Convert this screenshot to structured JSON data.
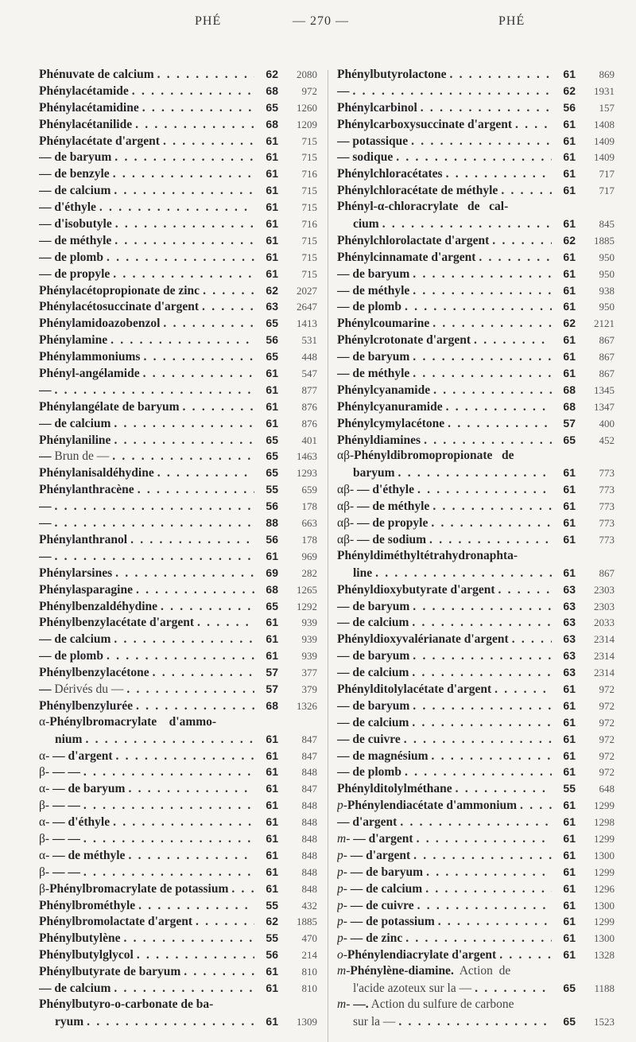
{
  "header": {
    "left": "PHÉ",
    "center": "— 270 —",
    "right": "PHÉ"
  },
  "columns": {
    "left": [
      {
        "t": "Phénuvate de calcium",
        "v": "62",
        "p": "2080"
      },
      {
        "t": "Phénylacétamide",
        "v": "68",
        "p": "972"
      },
      {
        "t": "Phénylacétamidine",
        "v": "65",
        "p": "1260"
      },
      {
        "t": "Phénylacétanilide",
        "v": "68",
        "p": "1209"
      },
      {
        "t": "Phénylacétate d'argent",
        "v": "61",
        "p": "715"
      },
      {
        "t": "— de baryum",
        "v": "61",
        "p": "715"
      },
      {
        "t": "— de benzyle",
        "v": "61",
        "p": "716"
      },
      {
        "t": "— de calcium",
        "v": "61",
        "p": "715"
      },
      {
        "t": "— d'éthyle",
        "v": "61",
        "p": "715"
      },
      {
        "t": "— d'isobutyle",
        "v": "61",
        "p": "716"
      },
      {
        "t": "— de méthyle",
        "v": "61",
        "p": "715"
      },
      {
        "t": "— de plomb",
        "v": "61",
        "p": "715"
      },
      {
        "t": "— de propyle",
        "v": "61",
        "p": "715"
      },
      {
        "t": "Phénylacétopropionate de zinc",
        "v": "62",
        "p": "2027"
      },
      {
        "t": "Phénylacétosuccinate d'argent",
        "v": "63",
        "p": "2647"
      },
      {
        "t": "Phénylamidoazobenzol",
        "v": "65",
        "p": "1413"
      },
      {
        "t": "Phénylamine",
        "v": "56",
        "p": "531"
      },
      {
        "t": "Phénylammoniums",
        "v": "65",
        "p": "448"
      },
      {
        "t": "Phényl-angélamide",
        "v": "61",
        "p": "547"
      },
      {
        "t": "—",
        "v": "61",
        "p": "877"
      },
      {
        "t": "Phénylangélate de baryum",
        "v": "61",
        "p": "876"
      },
      {
        "t": "— de calcium",
        "v": "61",
        "p": "876"
      },
      {
        "t": "Phénylaniline",
        "v": "65",
        "p": "401"
      },
      {
        "t": "—",
        "n": " Brun de —",
        "v": "65",
        "p": "1463"
      },
      {
        "t": "Phénylanisaldéhydine",
        "v": "65",
        "p": "1293"
      },
      {
        "t": "Phénylanthracène",
        "v": "55",
        "p": "659"
      },
      {
        "t": "—",
        "v": "56",
        "p": "178"
      },
      {
        "t": "—",
        "v": "88",
        "p": "663"
      },
      {
        "t": "Phénylanthranol",
        "v": "56",
        "p": "178"
      },
      {
        "t": "—",
        "v": "61",
        "p": "969"
      },
      {
        "t": "Phénylarsines",
        "v": "69",
        "p": "282"
      },
      {
        "t": "Phénylasparagine",
        "v": "68",
        "p": "1265"
      },
      {
        "t": "Phénylbenzaldéhydine",
        "v": "65",
        "p": "1292"
      },
      {
        "t": "Phénylbenzylacétate d'argent",
        "v": "61",
        "p": "939"
      },
      {
        "t": "— de calcium",
        "v": "61",
        "p": "939"
      },
      {
        "t": "— de plomb",
        "v": "61",
        "p": "939"
      },
      {
        "t": "Phénylbenzylacétone",
        "v": "57",
        "p": "377"
      },
      {
        "t": "—",
        "n": " Dérivés du —",
        "v": "57",
        "p": "379"
      },
      {
        "t": "Phénylbenzylurée",
        "v": "68",
        "p": "1326"
      },
      {
        "pre": "α-",
        "t": "Phénylbromacrylate    d'ammo-"
      },
      {
        "t": "nium",
        "v": "61",
        "p": "847",
        "cont": true
      },
      {
        "pre": "α-",
        "t": " — d'argent",
        "v": "61",
        "p": "847"
      },
      {
        "pre": "β-",
        "t": " — —",
        "v": "61",
        "p": "848"
      },
      {
        "pre": "α-",
        "t": " — de baryum",
        "v": "61",
        "p": "847"
      },
      {
        "pre": "β-",
        "t": " — —",
        "v": "61",
        "p": "848"
      },
      {
        "pre": "α-",
        "t": " — d'éthyle",
        "v": "61",
        "p": "848"
      },
      {
        "pre": "β-",
        "t": " — —",
        "v": "61",
        "p": "848"
      },
      {
        "pre": "α-",
        "t": " — de méthyle",
        "v": "61",
        "p": "848"
      },
      {
        "pre": "β-",
        "t": " — —",
        "v": "61",
        "p": "848"
      },
      {
        "pre": "β-",
        "t": "Phénylbromacrylate de potassium",
        "v": "61",
        "p": "848"
      },
      {
        "t": "Phénylbrométhyle",
        "v": "55",
        "p": "432"
      },
      {
        "t": "Phénylbromolactate d'argent",
        "v": "62",
        "p": "1885"
      },
      {
        "t": "Phénylbutylène",
        "v": "55",
        "p": "470"
      },
      {
        "t": "Phénylbutylglycol",
        "v": "56",
        "p": "214"
      },
      {
        "t": "Phénylbutyrate de baryum",
        "v": "61",
        "p": "810"
      },
      {
        "t": "— de calcium",
        "v": "61",
        "p": "810"
      },
      {
        "t": "Phénylbutyro-o-carbonate de ba-"
      },
      {
        "t": "ryum",
        "v": "61",
        "p": "1309",
        "cont": true
      }
    ],
    "right": [
      {
        "t": "Phénylbutyrolactone",
        "v": "61",
        "p": "869"
      },
      {
        "t": "—",
        "v": "62",
        "p": "1931"
      },
      {
        "t": "Phénylcarbinol",
        "v": "56",
        "p": "157"
      },
      {
        "t": "Phénylcarboxysuccinate d'argent",
        "v": "61",
        "p": "1408"
      },
      {
        "t": "— potassique",
        "v": "61",
        "p": "1409"
      },
      {
        "t": "— sodique",
        "v": "61",
        "p": "1409"
      },
      {
        "t": "Phénylchloracétates",
        "v": "61",
        "p": "717"
      },
      {
        "t": "Phénylchloracétate de méthyle",
        "v": "61",
        "p": "717"
      },
      {
        "t": "Phényl-α-chloracrylate   de   cal-"
      },
      {
        "t": "cium",
        "v": "61",
        "p": "845",
        "cont": true
      },
      {
        "t": "Phénylchlorolactate d'argent",
        "v": "62",
        "p": "1885"
      },
      {
        "t": "Phénylcinnamate d'argent",
        "v": "61",
        "p": "950"
      },
      {
        "t": "— de baryum",
        "v": "61",
        "p": "950"
      },
      {
        "t": "— de méthyle",
        "v": "61",
        "p": "938"
      },
      {
        "t": "— de plomb",
        "v": "61",
        "p": "950"
      },
      {
        "t": "Phénylcoumarine",
        "v": "62",
        "p": "2121"
      },
      {
        "t": "Phénylcrotonate d'argent",
        "v": "61",
        "p": "867"
      },
      {
        "t": "— de baryum",
        "v": "61",
        "p": "867"
      },
      {
        "t": "— de méthyle",
        "v": "61",
        "p": "867"
      },
      {
        "t": "Phénylcyanamide",
        "v": "68",
        "p": "1345"
      },
      {
        "t": "Phénylcyanuramide",
        "v": "68",
        "p": "1347"
      },
      {
        "t": "Phénylcymylacétone",
        "v": "57",
        "p": "400"
      },
      {
        "t": "Phényldiamines",
        "v": "65",
        "p": "452"
      },
      {
        "pre": "αβ-",
        "t": "Phényldibromopropionate   de"
      },
      {
        "t": "baryum",
        "v": "61",
        "p": "773",
        "cont": true
      },
      {
        "pre": "αβ-",
        "t": " — d'éthyle",
        "v": "61",
        "p": "773"
      },
      {
        "pre": "αβ-",
        "t": " — de méthyle",
        "v": "61",
        "p": "773"
      },
      {
        "pre": "αβ-",
        "t": " — de propyle",
        "v": "61",
        "p": "773"
      },
      {
        "pre": "αβ-",
        "t": " — de sodium",
        "v": "61",
        "p": "773"
      },
      {
        "t": "Phényldiméthyltétrahydronaphta-"
      },
      {
        "t": "line",
        "v": "61",
        "p": "867",
        "cont": true
      },
      {
        "t": "Phényldioxybutyrate d'argent",
        "v": "63",
        "p": "2303"
      },
      {
        "t": "— de baryum",
        "v": "63",
        "p": "2303"
      },
      {
        "t": "— de calcium",
        "v": "63",
        "p": "2033"
      },
      {
        "t": "Phényldioxyvalérianate d'argent",
        "v": "63",
        "p": "2314"
      },
      {
        "t": "— de baryum",
        "v": "63",
        "p": "2314"
      },
      {
        "t": "— de calcium",
        "v": "63",
        "p": "2314"
      },
      {
        "t": "Phénylditolylacétate d'argent",
        "v": "61",
        "p": "972"
      },
      {
        "t": "— de baryum",
        "v": "61",
        "p": "972"
      },
      {
        "t": "— de calcium",
        "v": "61",
        "p": "972"
      },
      {
        "t": "— de cuivre",
        "v": "61",
        "p": "972"
      },
      {
        "t": "— de magnésium",
        "v": "61",
        "p": "972"
      },
      {
        "t": "— de plomb",
        "v": "61",
        "p": "972"
      },
      {
        "t": "Phénylditolylméthane",
        "v": "55",
        "p": "648"
      },
      {
        "pre": "p-",
        "it": true,
        "t": "Phénylendiacétate d'ammonium",
        "v": "61",
        "p": "1299"
      },
      {
        "t": "— d'argent",
        "v": "61",
        "p": "1298"
      },
      {
        "pre": "m-",
        "it": true,
        "t": " — d'argent",
        "v": "61",
        "p": "1299"
      },
      {
        "pre": "p-",
        "it": true,
        "t": " — d'argent",
        "v": "61",
        "p": "1300"
      },
      {
        "pre": "p-",
        "it": true,
        "t": " — de baryum",
        "v": "61",
        "p": "1299"
      },
      {
        "pre": "p-",
        "it": true,
        "t": " — de calcium",
        "v": "61",
        "p": "1296"
      },
      {
        "pre": "p-",
        "it": true,
        "t": " — de cuivre",
        "v": "61",
        "p": "1300"
      },
      {
        "pre": "p-",
        "it": true,
        "t": " — de potassium",
        "v": "61",
        "p": "1299"
      },
      {
        "pre": "p-",
        "it": true,
        "t": " — de zinc",
        "v": "61",
        "p": "1300"
      },
      {
        "pre": "o-",
        "it": true,
        "t": "Phénylendiacrylate d'argent",
        "v": "61",
        "p": "1328"
      },
      {
        "pre": "m-",
        "it": true,
        "t": "Phénylène-diamine.",
        "n": "  Action  de"
      },
      {
        "n": "l'acide azoteux sur la —",
        "v": "65",
        "p": "1188",
        "cont": true
      },
      {
        "pre": "m-",
        "it": true,
        "t": " —.",
        "n": " Action du sulfure de carbone"
      },
      {
        "n": "sur la —",
        "v": "65",
        "p": "1523",
        "cont": true
      }
    ]
  }
}
